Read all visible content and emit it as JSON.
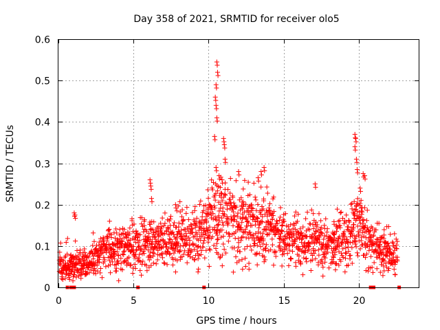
{
  "chart_data": {
    "type": "scatter",
    "title": "Day 358 of 2021, SRMTID for receiver olo5",
    "xlabel": "GPS time / hours",
    "ylabel": "SRMTID / TECUs",
    "xlim": [
      0,
      24
    ],
    "ylim": [
      0,
      0.6
    ],
    "xticks": [
      "0",
      "5",
      "10",
      "15",
      "20"
    ],
    "yticks": [
      "0",
      "0.1",
      "0.2",
      "0.3",
      "0.4",
      "0.5",
      "0.6"
    ],
    "grid": true,
    "series_color": "#ff0000",
    "baseline": {
      "x": [
        0,
        2,
        3,
        4.5,
        6,
        8,
        9.5,
        10.3,
        11,
        12,
        13.5,
        14.5,
        15,
        16,
        17,
        18,
        19,
        20,
        20.4,
        21,
        22,
        22.6
      ],
      "y": [
        0.05,
        0.055,
        0.085,
        0.095,
        0.11,
        0.12,
        0.125,
        0.17,
        0.17,
        0.15,
        0.15,
        0.13,
        0.11,
        0.12,
        0.11,
        0.1,
        0.11,
        0.15,
        0.13,
        0.1,
        0.085,
        0.08
      ]
    },
    "peaks": [
      {
        "x": 10.55,
        "y": 0.545
      },
      {
        "x": 10.6,
        "y": 0.52
      },
      {
        "x": 10.5,
        "y": 0.49
      },
      {
        "x": 10.45,
        "y": 0.46
      },
      {
        "x": 10.5,
        "y": 0.44
      },
      {
        "x": 10.55,
        "y": 0.41
      },
      {
        "x": 10.4,
        "y": 0.365
      },
      {
        "x": 11.0,
        "y": 0.36
      },
      {
        "x": 11.05,
        "y": 0.345
      },
      {
        "x": 11.1,
        "y": 0.31
      },
      {
        "x": 10.5,
        "y": 0.29
      },
      {
        "x": 10.7,
        "y": 0.27
      },
      {
        "x": 10.9,
        "y": 0.26
      },
      {
        "x": 12.0,
        "y": 0.28
      },
      {
        "x": 13.5,
        "y": 0.28
      },
      {
        "x": 13.7,
        "y": 0.29
      },
      {
        "x": 13.3,
        "y": 0.265
      },
      {
        "x": 6.1,
        "y": 0.26
      },
      {
        "x": 6.15,
        "y": 0.245
      },
      {
        "x": 17.1,
        "y": 0.25
      },
      {
        "x": 19.75,
        "y": 0.37
      },
      {
        "x": 19.8,
        "y": 0.36
      },
      {
        "x": 19.75,
        "y": 0.34
      },
      {
        "x": 19.85,
        "y": 0.31
      },
      {
        "x": 19.9,
        "y": 0.285
      },
      {
        "x": 20.3,
        "y": 0.275
      },
      {
        "x": 20.4,
        "y": 0.27
      },
      {
        "x": 20.1,
        "y": 0.24
      },
      {
        "x": 1.05,
        "y": 0.18
      },
      {
        "x": 1.1,
        "y": 0.175
      },
      {
        "x": 7.8,
        "y": 0.2
      },
      {
        "x": 6.2,
        "y": 0.215
      }
    ],
    "zero_markers": [
      0.6,
      0.85,
      1.05,
      5.3,
      9.7,
      20.8,
      21.0,
      22.7
    ]
  }
}
